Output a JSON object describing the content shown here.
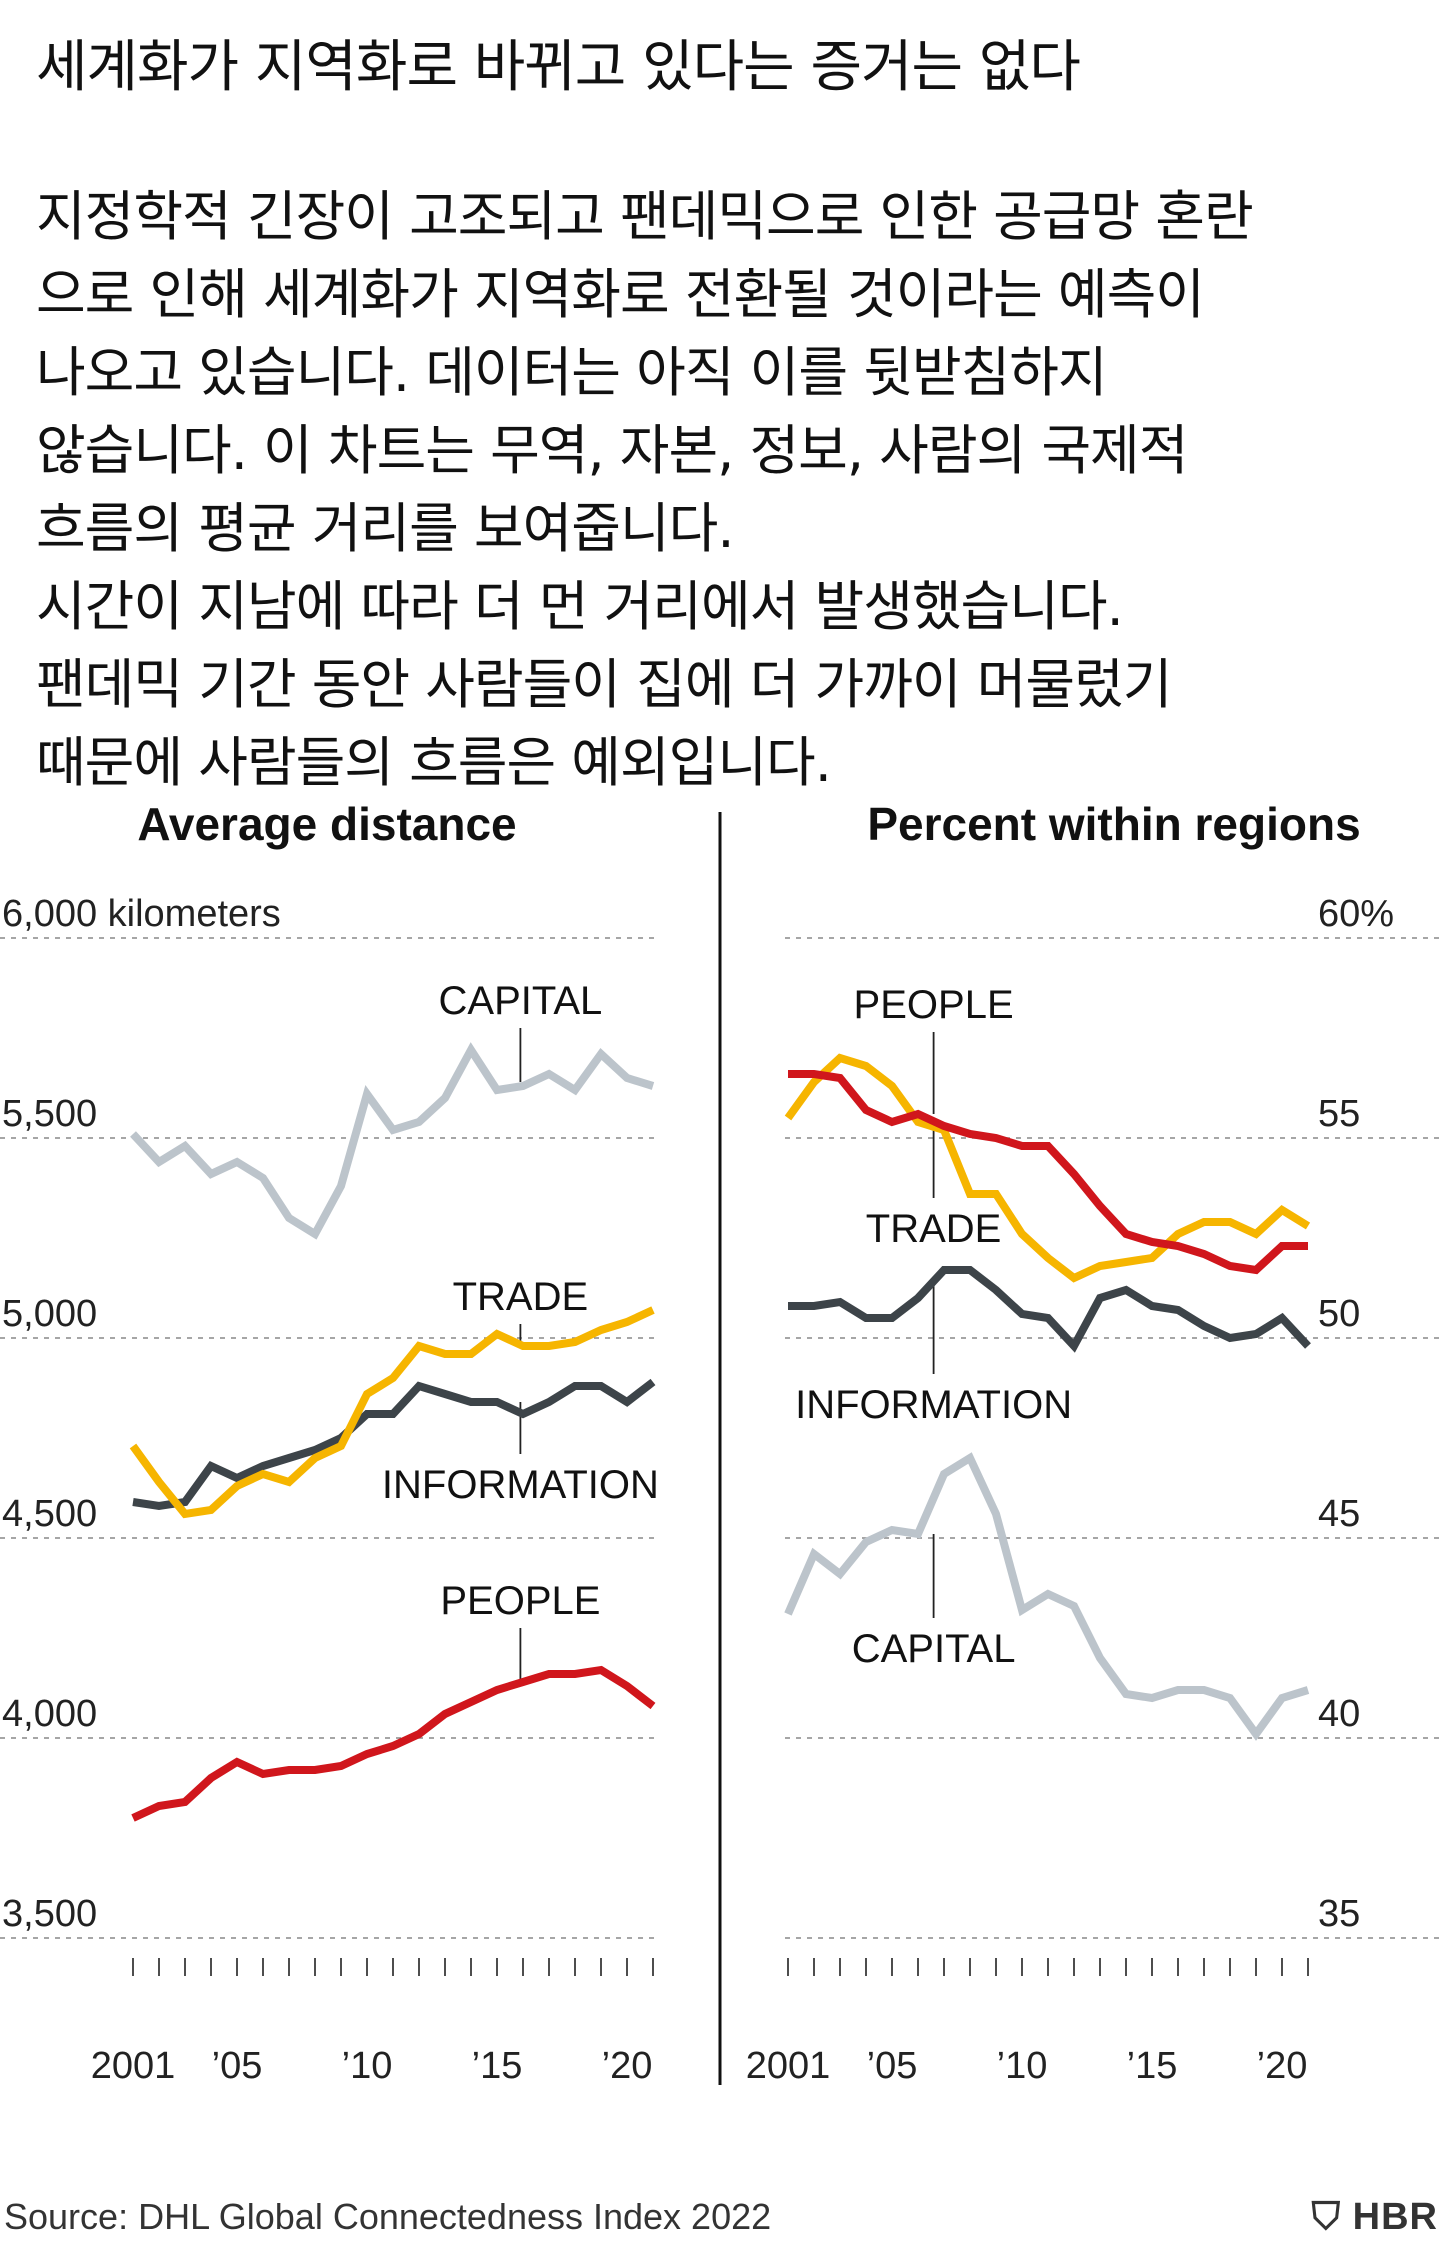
{
  "headline": "세계화가 지역화로 바뀌고 있다는 증거는 없다",
  "intro": [
    "지정학적 긴장이 고조되고 팬데믹으로 인한 공급망 혼란",
    "으로 인해 세계화가 지역화로 전환될 것이라는 예측이",
    "나오고 있습니다. 데이터는 아직 이를 뒷받침하지",
    "않습니다. 이 차트는 무역, 자본, 정보, 사람의 국제적",
    "흐름의 평균 거리를 보여줍니다.",
    "시간이 지남에 따라 더 먼 거리에서 발생했습니다.",
    "팬데믹 기간 동안 사람들이 집에 더 가까이 머물렀기",
    "때문에 사람들의 흐름은 예외입니다."
  ],
  "source": "Source: DHL Global Connectedness Index 2022",
  "logo": "HBR",
  "colors": {
    "trade": "#f6b500",
    "capital": "#bcc4cb",
    "information": "#3d4449",
    "people": "#d0161c",
    "grid": "#888888"
  },
  "chart_data": [
    {
      "type": "line",
      "title": "Average distance",
      "unit_label": "6,000 kilometers",
      "ylim": [
        3500,
        6000
      ],
      "y_ticks": [
        {
          "value": 6000,
          "label": "6,000 kilometers"
        },
        {
          "value": 5500,
          "label": "5,500"
        },
        {
          "value": 5000,
          "label": "5,000"
        },
        {
          "value": 4500,
          "label": "4,500"
        },
        {
          "value": 4000,
          "label": "4,000"
        },
        {
          "value": 3500,
          "label": "3,500"
        }
      ],
      "x": [
        2001,
        2002,
        2003,
        2004,
        2005,
        2006,
        2007,
        2008,
        2009,
        2010,
        2011,
        2012,
        2013,
        2014,
        2015,
        2016,
        2017,
        2018,
        2019,
        2020,
        2021
      ],
      "x_labels": [
        {
          "year": 2001,
          "label": "2001"
        },
        {
          "year": 2005,
          "label": "’05"
        },
        {
          "year": 2010,
          "label": "’10"
        },
        {
          "year": 2015,
          "label": "’15"
        },
        {
          "year": 2020,
          "label": "’20"
        }
      ],
      "series": [
        {
          "name": "CAPITAL",
          "color": "capital",
          "values": [
            5510,
            5440,
            5480,
            5410,
            5440,
            5400,
            5300,
            5260,
            5380,
            5610,
            5520,
            5540,
            5600,
            5720,
            5620,
            5630,
            5660,
            5620,
            5710,
            5650,
            5630
          ]
        },
        {
          "name": "TRADE",
          "color": "trade",
          "values": [
            4730,
            4640,
            4560,
            4570,
            4630,
            4660,
            4640,
            4700,
            4730,
            4860,
            4900,
            4980,
            4960,
            4960,
            5010,
            4980,
            4980,
            4990,
            5020,
            5040,
            5070
          ]
        },
        {
          "name": "INFORMATION",
          "color": "information",
          "values": [
            4590,
            4580,
            4590,
            4680,
            4650,
            4680,
            4700,
            4720,
            4750,
            4810,
            4810,
            4880,
            4860,
            4840,
            4840,
            4810,
            4840,
            4880,
            4880,
            4840,
            4890
          ]
        },
        {
          "name": "PEOPLE",
          "color": "people",
          "values": [
            3800,
            3830,
            3840,
            3900,
            3940,
            3910,
            3920,
            3920,
            3930,
            3960,
            3980,
            4010,
            4060,
            4090,
            4120,
            4140,
            4160,
            4160,
            4170,
            4130,
            4080
          ]
        }
      ],
      "labels": [
        {
          "series": "CAPITAL",
          "text": "CAPITAL",
          "year": 2015.9,
          "value": 5810,
          "leader_to": 5640
        },
        {
          "series": "TRADE",
          "text": "TRADE",
          "year": 2015.9,
          "value": 5070,
          "leader_to": 4990
        },
        {
          "series": "INFORMATION",
          "text": "INFORMATION",
          "year": 2015.9,
          "value": 4600,
          "leader_to": 4840
        },
        {
          "series": "PEOPLE",
          "text": "PEOPLE",
          "year": 2015.9,
          "value": 4310,
          "leader_to": 4140
        }
      ]
    },
    {
      "type": "line",
      "title": "Percent within regions",
      "ylim": [
        35,
        60
      ],
      "y_ticks": [
        {
          "value": 60,
          "label": "60%"
        },
        {
          "value": 55,
          "label": "55"
        },
        {
          "value": 50,
          "label": "50"
        },
        {
          "value": 45,
          "label": "45"
        },
        {
          "value": 40,
          "label": "40"
        },
        {
          "value": 35,
          "label": "35"
        }
      ],
      "x": [
        2001,
        2002,
        2003,
        2004,
        2005,
        2006,
        2007,
        2008,
        2009,
        2010,
        2011,
        2012,
        2013,
        2014,
        2015,
        2016,
        2017,
        2018,
        2019,
        2020,
        2021
      ],
      "x_labels": [
        {
          "year": 2001,
          "label": "2001"
        },
        {
          "year": 2005,
          "label": "’05"
        },
        {
          "year": 2010,
          "label": "’10"
        },
        {
          "year": 2015,
          "label": "’15"
        },
        {
          "year": 2020,
          "label": "’20"
        }
      ],
      "series": [
        {
          "name": "PEOPLE",
          "color": "people",
          "values": [
            56.6,
            56.6,
            56.5,
            55.7,
            55.4,
            55.6,
            55.3,
            55.1,
            55.0,
            54.8,
            54.8,
            54.1,
            53.3,
            52.6,
            52.4,
            52.3,
            52.1,
            51.8,
            51.7,
            52.3,
            52.3
          ]
        },
        {
          "name": "TRADE",
          "color": "trade",
          "values": [
            55.5,
            56.4,
            57.0,
            56.8,
            56.3,
            55.4,
            55.2,
            53.6,
            53.6,
            52.6,
            52.0,
            51.5,
            51.8,
            51.9,
            52.0,
            52.6,
            52.9,
            52.9,
            52.6,
            53.2,
            52.8
          ]
        },
        {
          "name": "INFORMATION",
          "color": "information",
          "values": [
            50.8,
            50.8,
            50.9,
            50.5,
            50.5,
            51.0,
            51.7,
            51.7,
            51.2,
            50.6,
            50.5,
            49.8,
            51.0,
            51.2,
            50.8,
            50.7,
            50.3,
            50.0,
            50.1,
            50.5,
            49.8
          ]
        },
        {
          "name": "CAPITAL",
          "color": "capital",
          "values": [
            43.1,
            44.6,
            44.1,
            44.9,
            45.2,
            45.1,
            46.6,
            47.0,
            45.6,
            43.2,
            43.6,
            43.3,
            42.0,
            41.1,
            41.0,
            41.2,
            41.2,
            41.0,
            40.1,
            41.0,
            41.2
          ]
        }
      ],
      "labels": [
        {
          "series": "PEOPLE",
          "text": "PEOPLE",
          "year": 2006.6,
          "value": 58.0,
          "leader_to": 55.6
        },
        {
          "series": "TRADE",
          "text": "TRADE",
          "year": 2006.6,
          "value": 52.4,
          "leader_to": 55.4
        },
        {
          "series": "INFORMATION",
          "text": "INFORMATION",
          "year": 2006.6,
          "value": 48.0,
          "leader_to": 51.4
        },
        {
          "series": "CAPITAL",
          "text": "CAPITAL",
          "year": 2006.6,
          "value": 41.9,
          "leader_to": 45.1
        }
      ]
    }
  ]
}
